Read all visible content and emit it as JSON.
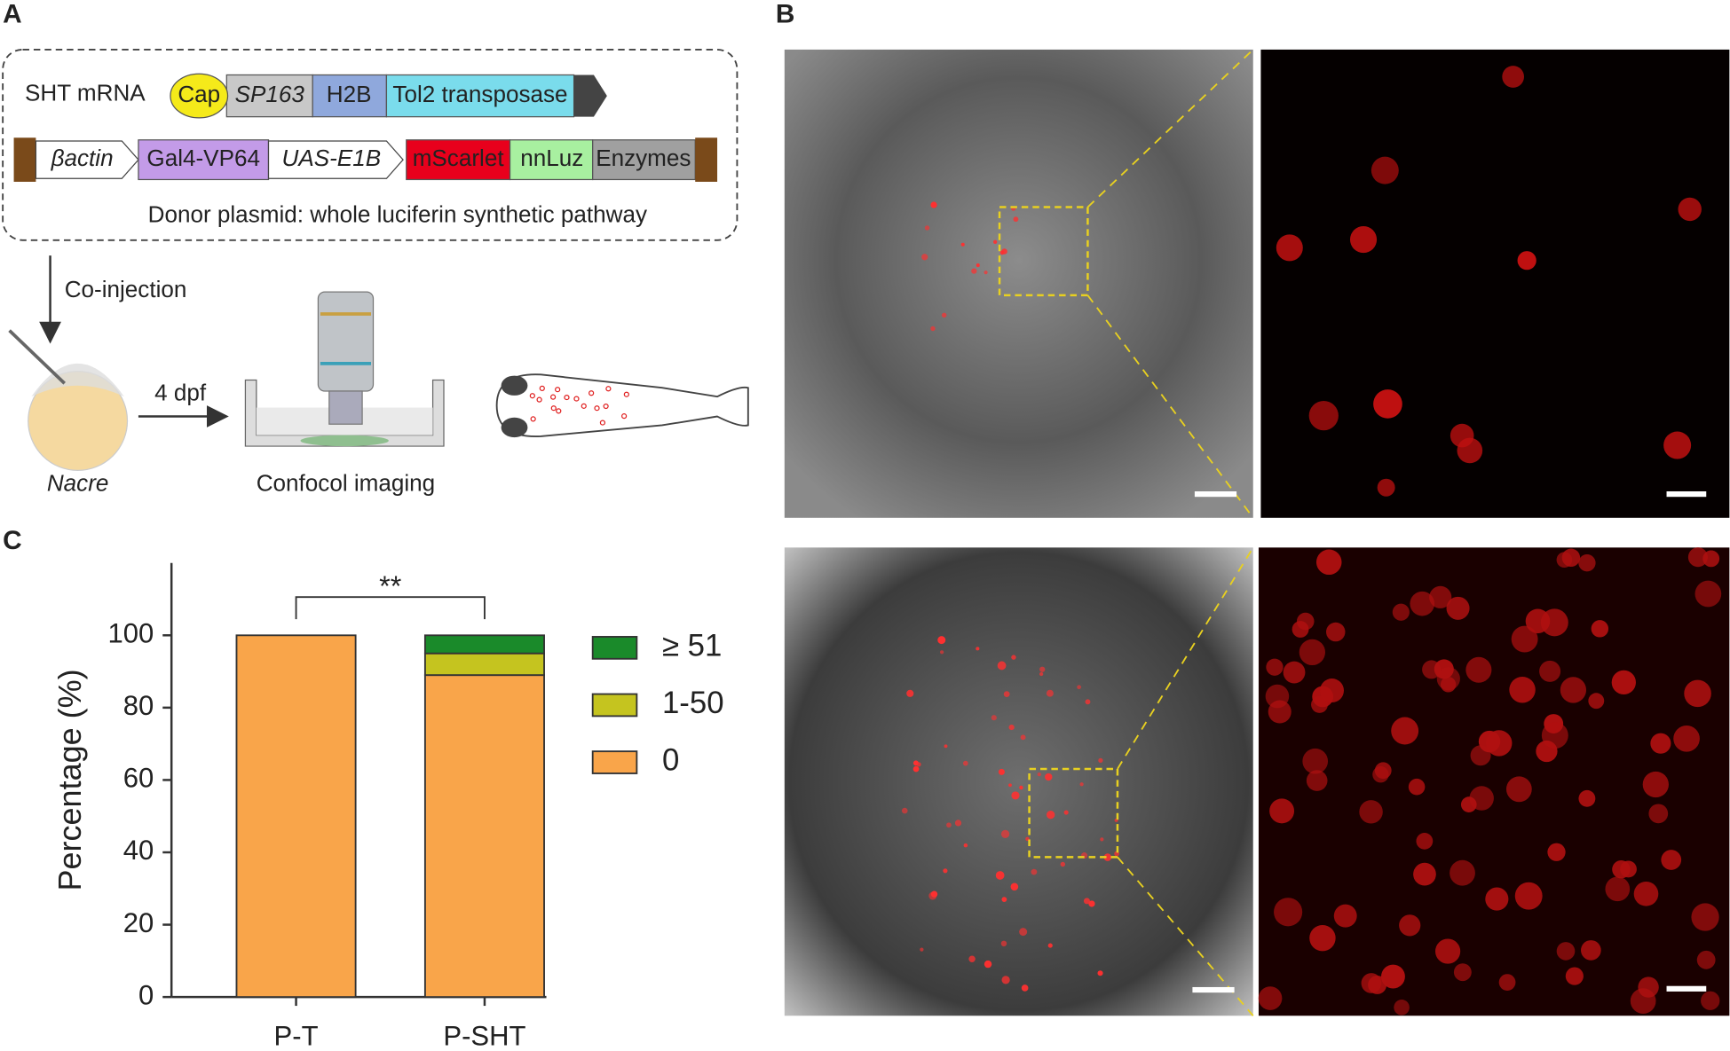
{
  "panel_labels": [
    "A",
    "B",
    "C"
  ],
  "panel_a": {
    "mrna_label": "SHT mRNA",
    "mrna_parts": [
      "Cap",
      "SP163",
      "H2B",
      "Tol2 transposase"
    ],
    "plasmid_parts": [
      "βactin",
      "Gal4-VP64",
      "UAS-E1B",
      "mScarlet",
      "nnLuz",
      "Enzymes"
    ],
    "plasmid_caption": "Donor plasmid: whole luciferin synthetic pathway",
    "step1": "Co-injection",
    "step2": "4 dpf",
    "embryo_label": "Nacre",
    "imaging_label": "Confocol imaging"
  },
  "chart_data": {
    "type": "bar",
    "stacked": true,
    "y_label": "Percentage (%)",
    "categories": [
      "P-T",
      "P-SHT"
    ],
    "series": [
      {
        "name": "0",
        "color": "#f9a54a",
        "values": [
          100,
          89
        ]
      },
      {
        "name": "1-50",
        "color": "#c5c41f",
        "values": [
          0,
          6
        ]
      },
      {
        "name": "≥  51",
        "color": "#1a8a2a",
        "values": [
          0,
          5
        ]
      }
    ],
    "ylim": [
      0,
      120
    ],
    "yticks": [
      0,
      20,
      40,
      60,
      80,
      100
    ],
    "significance": "**",
    "legend": "right"
  }
}
